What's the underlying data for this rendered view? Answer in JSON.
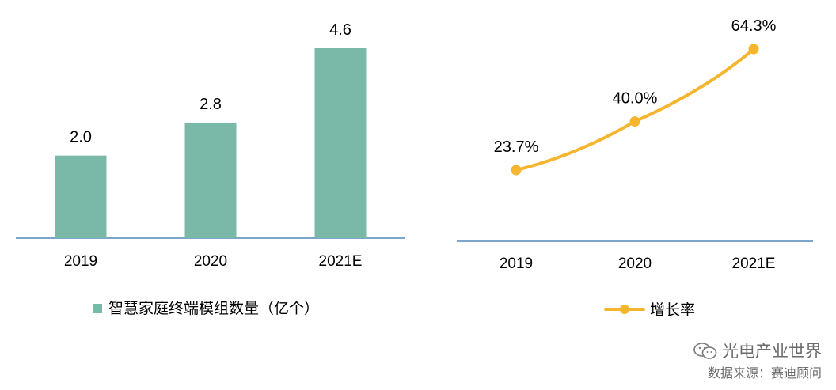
{
  "colors": {
    "bar": "#7ab8a8",
    "line": "#f5b52e",
    "axis": "#2f6fa8"
  },
  "chart_data": [
    {
      "type": "bar",
      "categories": [
        "2019",
        "2020",
        "2021E"
      ],
      "series": [
        {
          "name": "智慧家庭终端模组数量（亿个）",
          "values": [
            2.0,
            2.8,
            4.6
          ]
        }
      ],
      "data_labels": [
        "2.0",
        "2.8",
        "4.6"
      ],
      "ylim": [
        0,
        4.6
      ],
      "grid": false,
      "legend_position": "bottom"
    },
    {
      "type": "line",
      "categories": [
        "2019",
        "2020",
        "2021E"
      ],
      "series": [
        {
          "name": "增长率",
          "values": [
            23.7,
            40.0,
            64.3
          ]
        }
      ],
      "data_labels": [
        "23.7%",
        "40.0%",
        "64.3%"
      ],
      "ylim": [
        0,
        64.3
      ],
      "grid": false,
      "legend_position": "bottom"
    }
  ],
  "footer": {
    "brand": "光电产业世界",
    "source": "数据来源：赛迪顾问",
    "icon": "wechat-icon"
  }
}
